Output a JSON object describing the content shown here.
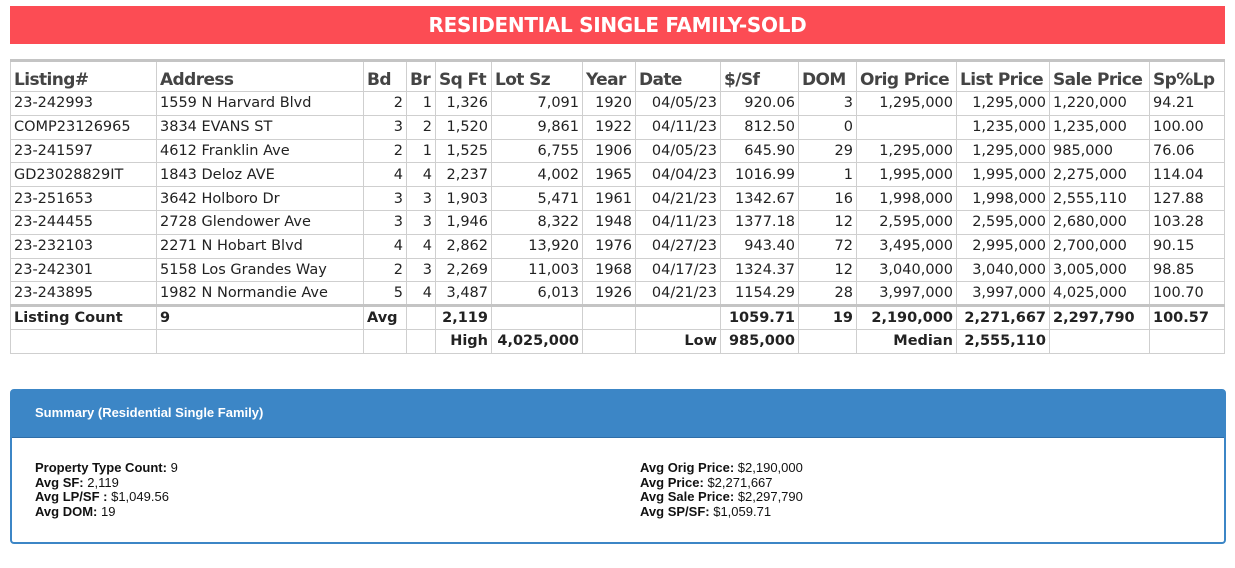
{
  "title": "RESIDENTIAL SINGLE FAMILY-SOLD",
  "headers": [
    "Listing#",
    "Address",
    "Bd",
    "Br",
    "Sq Ft",
    "Lot Sz",
    "Year",
    "Date",
    "$/Sf",
    "DOM",
    "Orig Price",
    "List Price",
    "Sale Price",
    "Sp%Lp"
  ],
  "rows": [
    [
      "23-242993",
      "1559 N Harvard Blvd",
      "2",
      "1",
      "1,326",
      "7,091",
      "1920",
      "04/05/23",
      "920.06",
      "3",
      "1,295,000",
      "1,295,000",
      "1,220,000",
      "94.21"
    ],
    [
      "COMP23126965",
      "3834 EVANS ST",
      "3",
      "2",
      "1,520",
      "9,861",
      "1922",
      "04/11/23",
      "812.50",
      "0",
      "",
      "1,235,000",
      "1,235,000",
      "100.00"
    ],
    [
      "23-241597",
      "4612 Franklin Ave",
      "2",
      "1",
      "1,525",
      "6,755",
      "1906",
      "04/05/23",
      "645.90",
      "29",
      "1,295,000",
      "1,295,000",
      "985,000",
      "76.06"
    ],
    [
      "GD23028829IT",
      "1843 Deloz AVE",
      "4",
      "4",
      "2,237",
      "4,002",
      "1965",
      "04/04/23",
      "1016.99",
      "1",
      "1,995,000",
      "1,995,000",
      "2,275,000",
      "114.04"
    ],
    [
      "23-251653",
      "3642 Holboro Dr",
      "3",
      "3",
      "1,903",
      "5,471",
      "1961",
      "04/21/23",
      "1342.67",
      "16",
      "1,998,000",
      "1,998,000",
      "2,555,110",
      "127.88"
    ],
    [
      "23-244455",
      "2728 Glendower Ave",
      "3",
      "3",
      "1,946",
      "8,322",
      "1948",
      "04/11/23",
      "1377.18",
      "12",
      "2,595,000",
      "2,595,000",
      "2,680,000",
      "103.28"
    ],
    [
      "23-232103",
      "2271 N Hobart Blvd",
      "4",
      "4",
      "2,862",
      "13,920",
      "1976",
      "04/27/23",
      "943.40",
      "72",
      "3,495,000",
      "2,995,000",
      "2,700,000",
      "90.15"
    ],
    [
      "23-242301",
      "5158 Los Grandes Way",
      "2",
      "3",
      "2,269",
      "11,003",
      "1968",
      "04/17/23",
      "1324.37",
      "12",
      "3,040,000",
      "3,040,000",
      "3,005,000",
      "98.85"
    ],
    [
      "23-243895",
      "1982 N Normandie Ave",
      "5",
      "4",
      "3,487",
      "6,013",
      "1926",
      "04/21/23",
      "1154.29",
      "28",
      "3,997,000",
      "3,997,000",
      "4,025,000",
      "100.70"
    ]
  ],
  "summary_row": {
    "count_label": "Listing Count",
    "count": "9",
    "avg_label": "Avg",
    "sqft": "2,119",
    "psf": "1059.71",
    "dom": "19",
    "orig": "2,190,000",
    "list": "2,271,667",
    "sale": "2,297,790",
    "splp": "100.57"
  },
  "stats_row": {
    "high_label": "High",
    "high": "4,025,000",
    "low_label": "Low",
    "low": "985,000",
    "median_label": "Median",
    "median": "2,555,110"
  },
  "summary_box": {
    "title": "Summary (Residential Single Family)",
    "left": [
      {
        "k": "Property Type Count:",
        "v": "9"
      },
      {
        "k": "Avg SF:",
        "v": "2,119"
      },
      {
        "k": "Avg LP/SF :",
        "v": "$1,049.56"
      },
      {
        "k": "Avg DOM:",
        "v": "19"
      }
    ],
    "right": [
      {
        "k": "Avg Orig Price:",
        "v": "$2,190,000"
      },
      {
        "k": "Avg Price:",
        "v": "$2,271,667"
      },
      {
        "k": "Avg Sale Price:",
        "v": "$2,297,790"
      },
      {
        "k": "Avg SP/SF:",
        "v": "$1,059.71"
      }
    ]
  },
  "colors": {
    "banner": "#fc4c54",
    "summary_header": "#3c86c6"
  }
}
